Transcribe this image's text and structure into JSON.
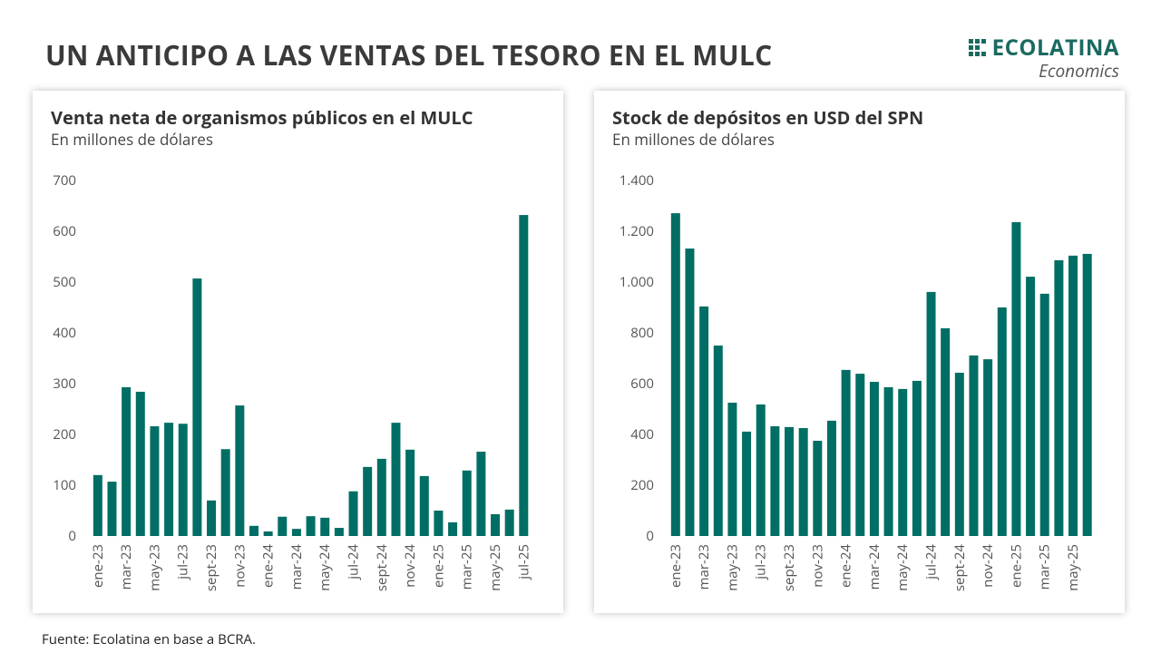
{
  "header": {
    "title": "UN ANTICIPO A LAS VENTAS DEL TESORO EN EL MULC",
    "logo": "ECOLATINA",
    "logo_sub": "Economics"
  },
  "footer": {
    "source": "Fuente: Ecolatina en base a BCRA."
  },
  "chart_data": [
    {
      "type": "bar",
      "title": "Venta neta de organismos públicos en el MULC",
      "subtitle": "En millones de dólares",
      "color": "#006e64",
      "categories": [
        "ene-23",
        null,
        "mar-23",
        null,
        "may-23",
        null,
        "jul-23",
        null,
        "sept-23",
        null,
        "nov-23",
        null,
        "ene-24",
        null,
        "mar-24",
        null,
        "may-24",
        null,
        "jul-24",
        null,
        "sept-24",
        null,
        "nov-24",
        null,
        "ene-25",
        null,
        "mar-25",
        null,
        "may-25",
        null,
        "jul-25"
      ],
      "values": [
        120,
        107,
        293,
        284,
        216,
        223,
        221,
        507,
        70,
        171,
        257,
        20,
        9,
        38,
        14,
        39,
        36,
        16,
        88,
        136,
        152,
        223,
        170,
        118,
        50,
        27,
        129,
        166,
        43,
        52,
        632
      ],
      "ylim": [
        0,
        700
      ],
      "yticks": [
        0,
        100,
        200,
        300,
        400,
        500,
        600,
        700
      ],
      "grid": false
    },
    {
      "type": "bar",
      "title": "Stock de depósitos en USD del SPN",
      "subtitle": "En millones de dólares",
      "color": "#006e64",
      "categories": [
        "ene-23",
        null,
        "mar-23",
        null,
        "may-23",
        null,
        "jul-23",
        null,
        "sept-23",
        null,
        "nov-23",
        null,
        "ene-24",
        null,
        "mar-24",
        null,
        "may-24",
        null,
        "jul-24",
        null,
        "sept-24",
        null,
        "nov-24",
        null,
        "ene-25",
        null,
        "mar-25",
        null,
        "may-25",
        null
      ],
      "values": [
        1271,
        1132,
        904,
        750,
        525,
        411,
        518,
        432,
        429,
        425,
        375,
        454,
        654,
        639,
        607,
        586,
        579,
        611,
        961,
        818,
        643,
        711,
        696,
        900,
        1236,
        1021,
        954,
        1086,
        1104,
        1111
      ],
      "ylim": [
        0,
        1400
      ],
      "yticks": [
        0,
        200,
        400,
        600,
        800,
        {
          "value": 1000,
          "label": "1.000"
        },
        {
          "value": 1200,
          "label": "1.200"
        },
        {
          "value": 1400,
          "label": "1.400"
        }
      ],
      "grid": false
    }
  ]
}
